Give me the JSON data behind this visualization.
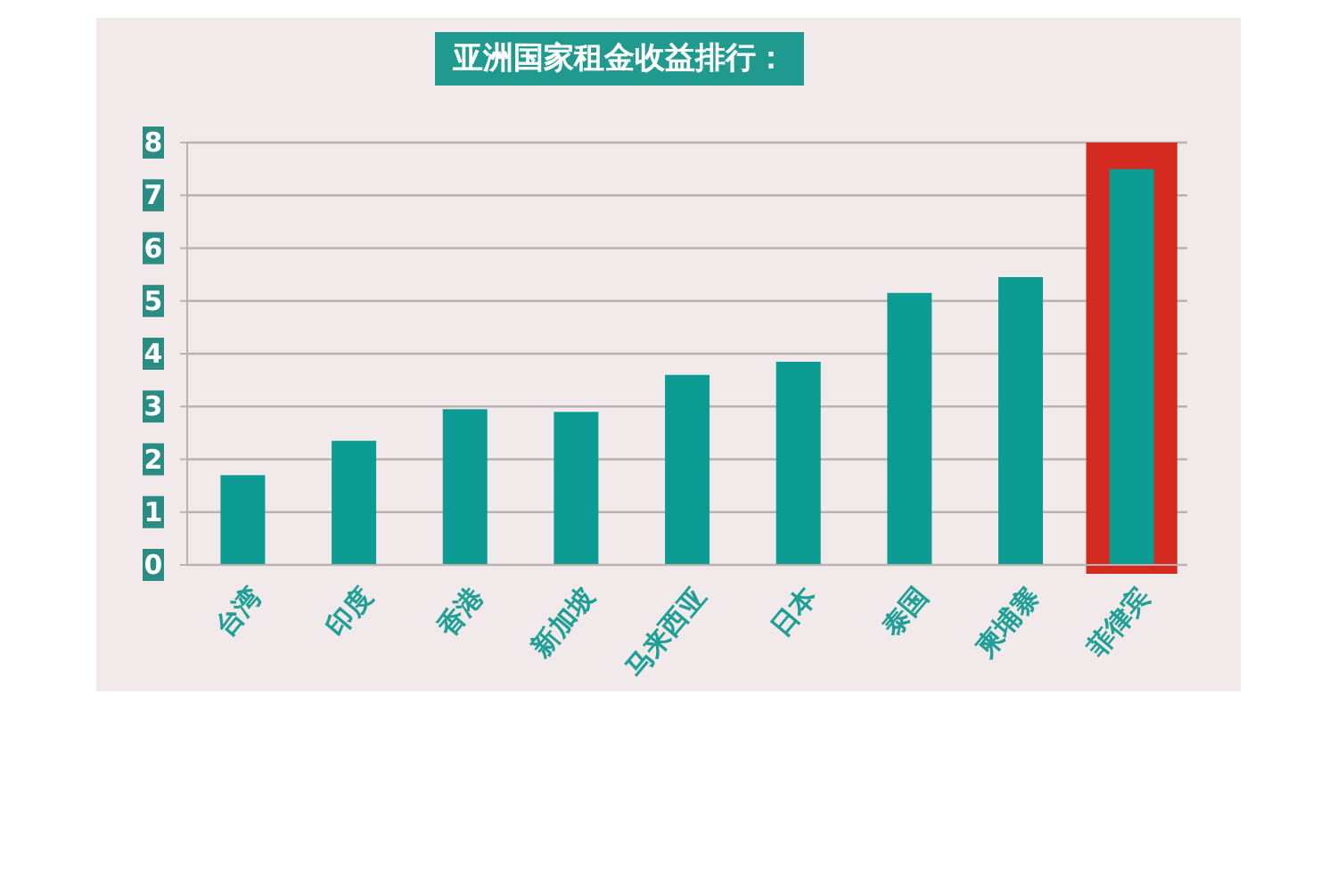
{
  "chart_data": {
    "type": "bar",
    "title": "亚洲国家租金收益排行：",
    "categories": [
      "台湾",
      "印度",
      "香港",
      "新加坡",
      "马来西亚",
      "日本",
      "泰国",
      "柬埔寨",
      "菲律宾"
    ],
    "values": [
      1.7,
      2.35,
      2.95,
      2.9,
      3.6,
      3.85,
      5.15,
      5.45,
      7.5
    ],
    "color": "#0d9c94",
    "ylim": [
      0,
      8
    ],
    "yticks": [
      0,
      1,
      2,
      3,
      4,
      5,
      6,
      7,
      8
    ],
    "grid": "y",
    "bands": [
      {
        "axis": "x",
        "from": "菲律宾",
        "to": "菲律宾",
        "color": "#d42a20"
      }
    ]
  }
}
